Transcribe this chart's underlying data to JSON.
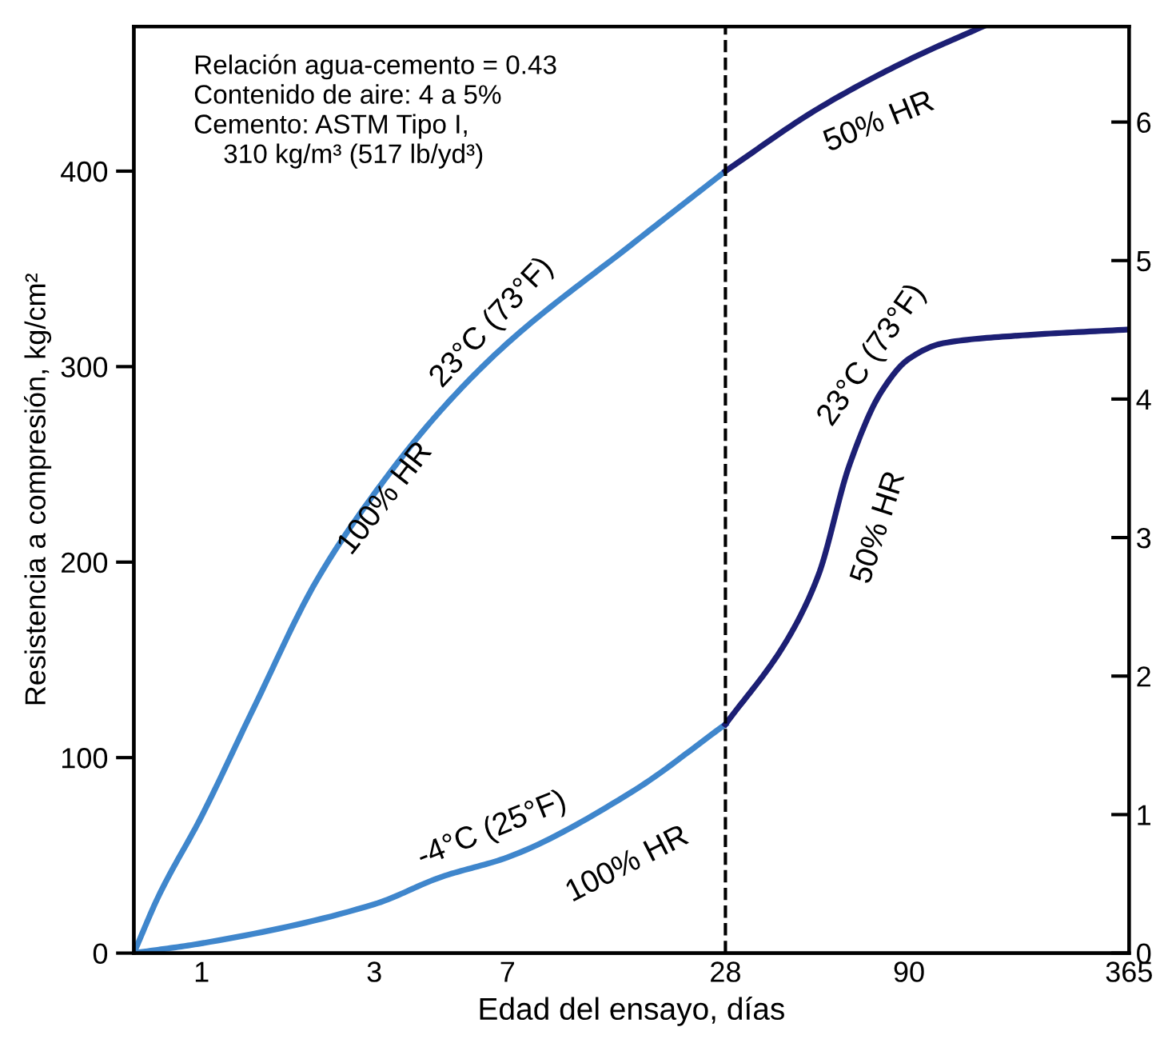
{
  "chart_data": {
    "type": "line",
    "xlabel": "Edad del ensayo, días",
    "ylabel": "Resistencia a compresión, kg/cm²",
    "log": "x",
    "xlim": [
      0.65,
      365
    ],
    "xticks": [
      1,
      3,
      7,
      28,
      90,
      365
    ],
    "ylim": [
      0,
      474
    ],
    "yticks": [
      0,
      100,
      200,
      300,
      400
    ],
    "y2lim": [
      0,
      6.69
    ],
    "y2ticks": [
      0,
      1,
      2,
      3,
      4,
      5,
      6
    ],
    "grid": false,
    "legend": false,
    "marker": "none",
    "line_style": "solid",
    "series": [
      {
        "color": "#3f86cc",
        "x": [
          0.65,
          0.76,
          1,
          1.39,
          2.07,
          3,
          4.6,
          7,
          15.3,
          28
        ],
        "values": [
          0,
          29,
          70,
          125,
          190,
          235,
          278,
          312,
          362,
          400
        ]
      },
      {
        "color": "#1c1f74",
        "x": [
          28,
          50.5,
          90,
          144
        ],
        "values": [
          400,
          432,
          457,
          474
        ]
      },
      {
        "color": "#3f86cc",
        "x": [
          0.65,
          1,
          3,
          4.6,
          7,
          15.3,
          28
        ],
        "values": [
          0,
          5,
          25,
          39,
          49,
          82,
          117
        ]
      },
      {
        "color": "#1c1f74",
        "x": [
          28,
          41.4,
          50.5,
          61.7,
          75.4,
          90,
          112,
          185,
          365
        ],
        "values": [
          117,
          160,
          193,
          250,
          287,
          304,
          312,
          316,
          319
        ]
      }
    ],
    "ref_lines": [
      {
        "axis": "x",
        "value": 28,
        "line_style": "dashed",
        "color": "#000000"
      }
    ],
    "annotations": [
      "Relación agua-cemento = 0.43\nContenido de aire: 4 a 5%\nCemento: ASTM Tipo I,\n    310 kg/m³ (517 lb/yd³)",
      "23°C (73°F)",
      "100% HR",
      "50% HR",
      "23°C (73°F)",
      "50% HR",
      "-4°C (25°F)",
      "100% HR"
    ]
  }
}
